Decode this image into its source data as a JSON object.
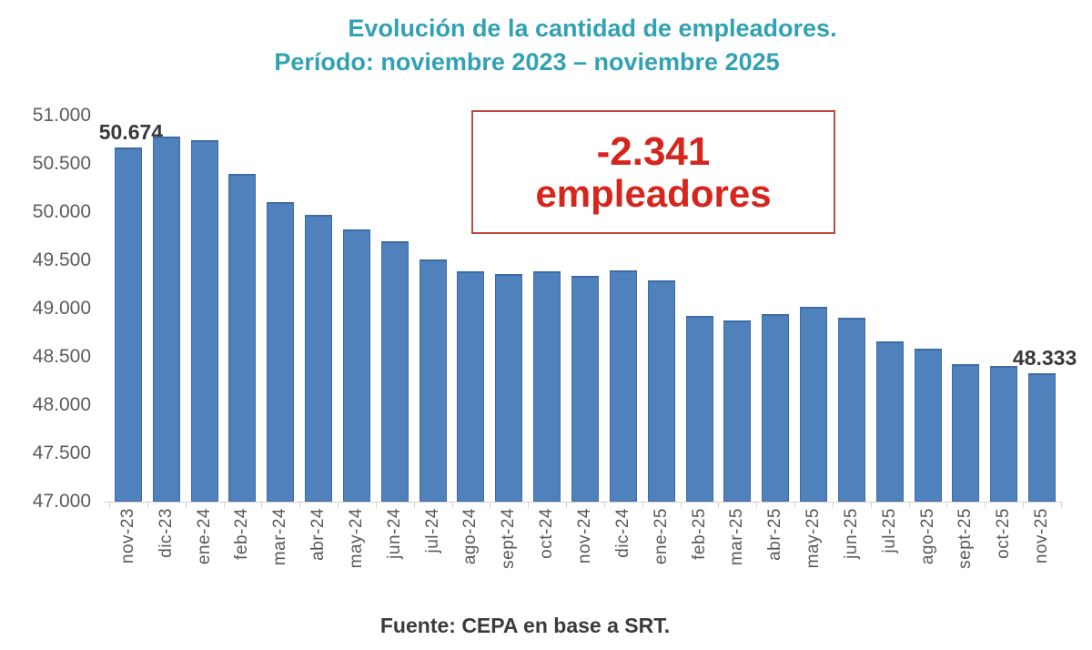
{
  "page": {
    "background": "#ffffff"
  },
  "title": {
    "line1": "Evolución de la cantidad de empleadores.",
    "line2": "Período: noviembre 2023 – noviembre 2025",
    "color": "#31a1b4"
  },
  "annotation": {
    "line1": "-2.341",
    "line2": "empleadores",
    "text_color": "#d5251c",
    "border_color": "#c04a41"
  },
  "footer": {
    "text": "Fuente: CEPA en base a SRT."
  },
  "colors": {
    "bar": "#4f81bd",
    "bar_edge": "#3f6ba3",
    "axis_text": "#595959",
    "point_label": "#393939"
  },
  "chart_data": {
    "type": "bar",
    "title": "Evolución de la cantidad de empleadores.",
    "subtitle": "Período: noviembre 2023 – noviembre 2025",
    "xlabel": "",
    "ylabel": "",
    "ylim": [
      47000,
      51000
    ],
    "ytick_step": 500,
    "ytick_labels": [
      "51.000",
      "50.500",
      "50.000",
      "49.500",
      "49.000",
      "48.500",
      "48.000",
      "47.500",
      "47.000"
    ],
    "grid": false,
    "legend": false,
    "bar_color": "#4f81bd",
    "categories": [
      "nov-23",
      "dic-23",
      "ene-24",
      "feb-24",
      "mar-24",
      "abr-24",
      "may-24",
      "jun-24",
      "jul-24",
      "ago-24",
      "sept-24",
      "oct-24",
      "nov-24",
      "dic-24",
      "ene-25",
      "feb-25",
      "mar-25",
      "abr-25",
      "may-25",
      "jun-25",
      "jul-25",
      "ago-25",
      "sept-25",
      "oct-25",
      "nov-25"
    ],
    "values": [
      50674,
      50780,
      50748,
      50395,
      50100,
      49975,
      49820,
      49700,
      49505,
      49385,
      49355,
      49385,
      49335,
      49400,
      49290,
      48920,
      48880,
      48945,
      49020,
      48910,
      48660,
      48585,
      48425,
      48405,
      48333
    ],
    "point_labels": {
      "0": "50.674",
      "24": "48.333"
    },
    "annotation": "-2.341 empleadores",
    "source": "Fuente: CEPA en base a SRT."
  }
}
